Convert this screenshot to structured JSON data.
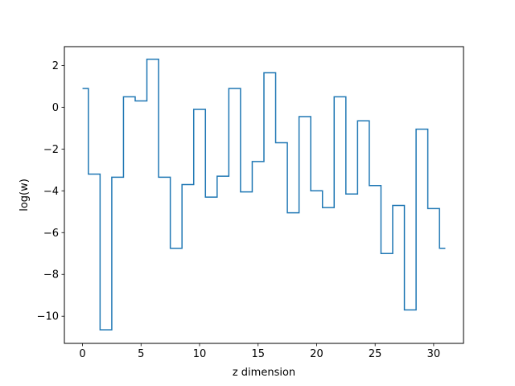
{
  "chart_data": {
    "type": "line",
    "drawstyle": "steps-mid",
    "xlabel": "z dimension",
    "ylabel": "log(w)",
    "xlim": [
      -1.55,
      32.55
    ],
    "ylim": [
      -11.3,
      2.9
    ],
    "xticks": [
      0,
      5,
      10,
      15,
      20,
      25,
      30
    ],
    "yticks": [
      -10,
      -8,
      -6,
      -4,
      -2,
      0,
      2
    ],
    "xtick_labels": [
      "0",
      "5",
      "10",
      "15",
      "20",
      "25",
      "30"
    ],
    "ytick_labels": [
      "−10",
      "−8",
      "−6",
      "−4",
      "−2",
      "0",
      "2"
    ],
    "grid": false,
    "series": [
      {
        "color": "#1f77b4",
        "x": [
          0,
          1,
          2,
          3,
          4,
          5,
          6,
          7,
          8,
          9,
          10,
          11,
          12,
          13,
          14,
          15,
          16,
          17,
          18,
          19,
          20,
          21,
          22,
          23,
          24,
          25,
          26,
          27,
          28,
          29,
          30,
          31
        ],
        "y": [
          0.9,
          -3.2,
          -10.65,
          -3.35,
          0.5,
          0.3,
          2.3,
          -3.35,
          -6.75,
          -3.7,
          -0.1,
          -4.3,
          -3.3,
          0.9,
          -4.05,
          -2.6,
          1.65,
          -1.7,
          -5.05,
          -0.45,
          -4.0,
          -4.8,
          0.5,
          -4.15,
          -0.65,
          -3.75,
          -7.0,
          -4.7,
          -9.7,
          -1.05,
          -4.85,
          -6.75
        ]
      }
    ]
  }
}
